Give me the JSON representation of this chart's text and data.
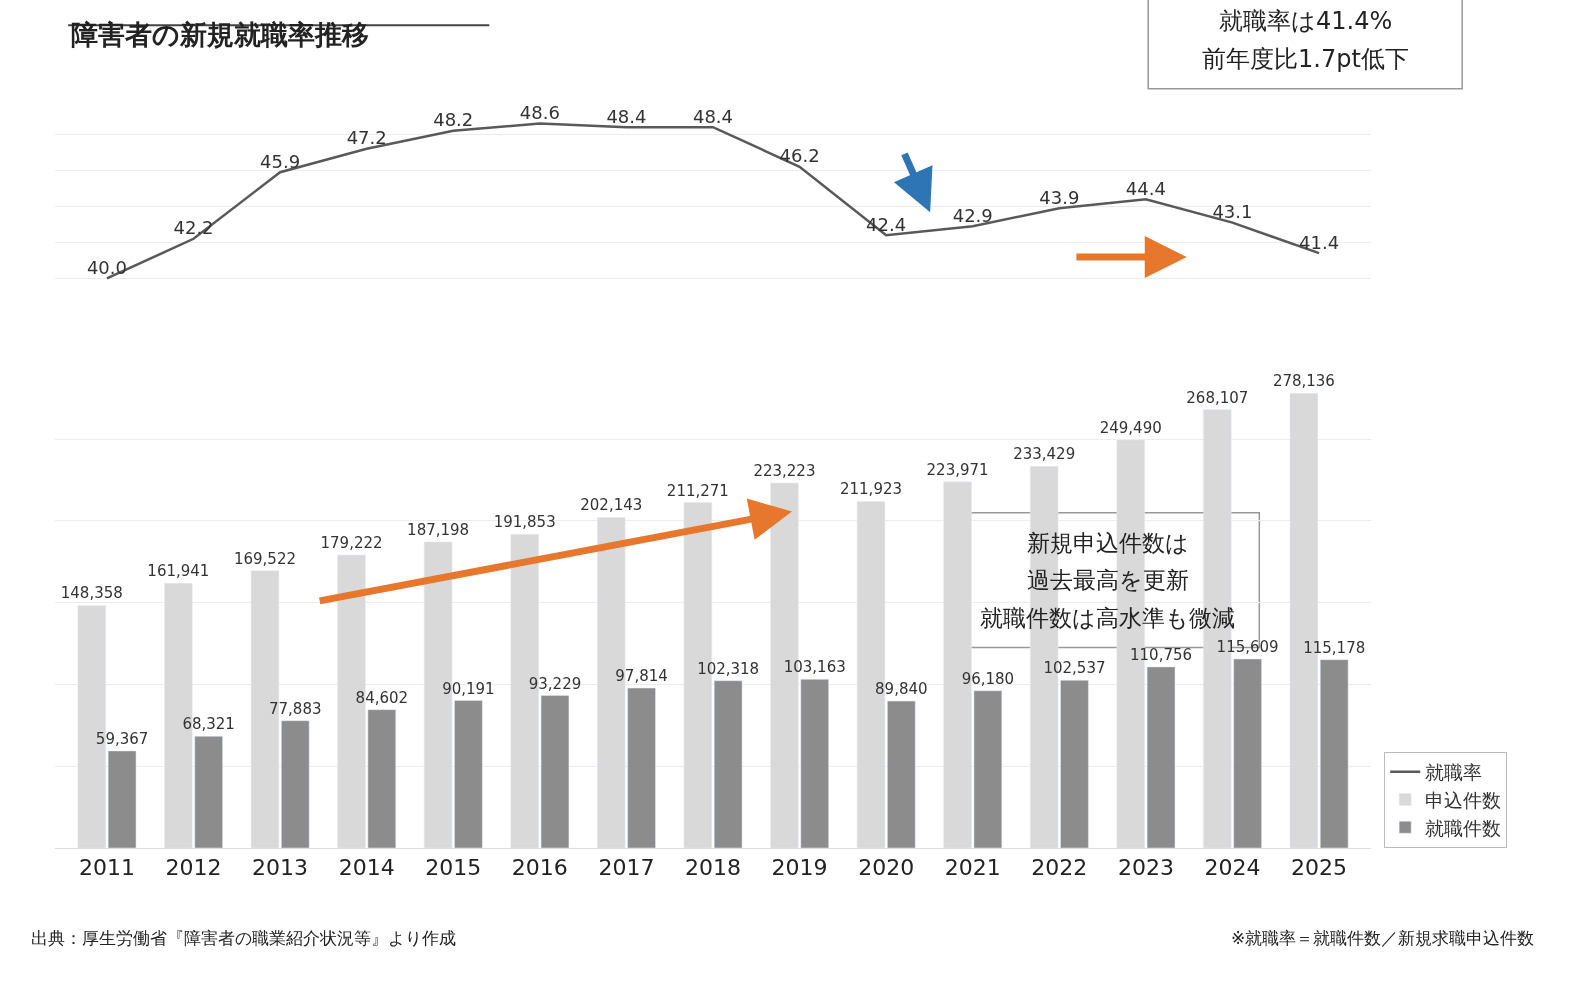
{
  "chart_data": [
    {
      "type": "line",
      "title": "障害者の新規就職率推移",
      "categories": [
        "2011",
        "2012",
        "2013",
        "2014",
        "2015",
        "2016",
        "2017",
        "2018",
        "2019",
        "2020",
        "2021",
        "2022",
        "2023",
        "2024",
        "2025"
      ],
      "series": [
        {
          "name": "就職率",
          "color": "#595959",
          "values": [
            40.0,
            42.2,
            45.9,
            47.2,
            48.2,
            48.6,
            48.4,
            48.4,
            46.2,
            42.4,
            42.9,
            43.9,
            44.4,
            43.1,
            41.4
          ],
          "value_labels": [
            "40.0",
            "42.2",
            "45.9",
            "47.2",
            "48.2",
            "48.6",
            "48.4",
            "48.4",
            "46.2",
            "42.4",
            "42.9",
            "43.9",
            "44.4",
            "43.1",
            "41.4"
          ]
        }
      ],
      "grid": "y",
      "tick_labels": false,
      "marker": "none",
      "annotations": [
        "就職率は41.4%",
        "前年度比1.7pt低下"
      ]
    },
    {
      "type": "bar",
      "categories": [
        "2011",
        "2012",
        "2013",
        "2014",
        "2015",
        "2016",
        "2017",
        "2018",
        "2019",
        "2020",
        "2021",
        "2022",
        "2023",
        "2024",
        "2025"
      ],
      "series": [
        {
          "name": "申込件数",
          "color": "#d9d9d9",
          "values": [
            148358,
            161941,
            169522,
            179222,
            187198,
            191853,
            202143,
            211271,
            223223,
            211923,
            223971,
            233429,
            249490,
            268107,
            278136
          ],
          "value_labels": [
            "148,358",
            "161,941",
            "169,522",
            "179,222",
            "187,198",
            "191,853",
            "202,143",
            "211,271",
            "223,223",
            "211,923",
            "223,971",
            "233,429",
            "249,490",
            "268,107",
            "278,136"
          ]
        },
        {
          "name": "就職件数",
          "color": "#8c8c8c",
          "values": [
            59367,
            68321,
            77883,
            84602,
            90191,
            93229,
            97814,
            102318,
            103163,
            89840,
            96180,
            102537,
            110756,
            115609,
            115178
          ],
          "value_labels": [
            "59,367",
            "68,321",
            "77,883",
            "84,602",
            "90,191",
            "93,229",
            "97,814",
            "102,318",
            "103,163",
            "89,840",
            "96,180",
            "102,537",
            "110,756",
            "115,609",
            "115,178"
          ]
        }
      ],
      "grid": "y",
      "legend": "bottom right",
      "tick_labels": "x",
      "annotations": [
        "新規申込件数は",
        "過去最高を更新",
        "就職件数は高水準も微減",
        "出典：厚生労働省『障害者の職業紹介状況等』より作成",
        "※就職率＝就職件数／新規求職申込件数"
      ]
    }
  ]
}
